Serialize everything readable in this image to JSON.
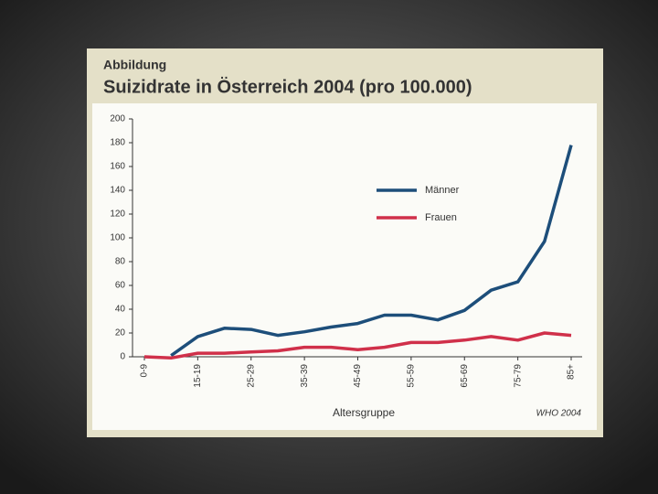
{
  "chart_data": {
    "type": "line",
    "header": "Abbildung",
    "title": "Suizidrate in Österreich 2004 (pro 100.000)",
    "x_label": "Altersgruppe",
    "source": "WHO 2004",
    "categories": [
      "0-9",
      null,
      "15-19",
      null,
      "25-29",
      null,
      "35-39",
      null,
      "45-49",
      null,
      "55-59",
      null,
      "65-69",
      null,
      "75-79",
      null,
      "85+"
    ],
    "series": [
      {
        "name": "Männer",
        "color": "#1d4e7a",
        "values": [
          null,
          1,
          17,
          24,
          23,
          18,
          21,
          25,
          28,
          35,
          35,
          31,
          39,
          56,
          63,
          97,
          178
        ]
      },
      {
        "name": "Frauen",
        "color": "#d0304a",
        "values": [
          0,
          -1,
          3,
          3,
          4,
          5,
          8,
          8,
          6,
          8,
          12,
          12,
          14,
          17,
          14,
          20,
          18
        ]
      }
    ],
    "ylim": [
      0,
      200
    ],
    "yticks": [
      0,
      20,
      40,
      60,
      80,
      100,
      120,
      140,
      160,
      180,
      200
    ],
    "grid": false,
    "legend": "upper right"
  }
}
